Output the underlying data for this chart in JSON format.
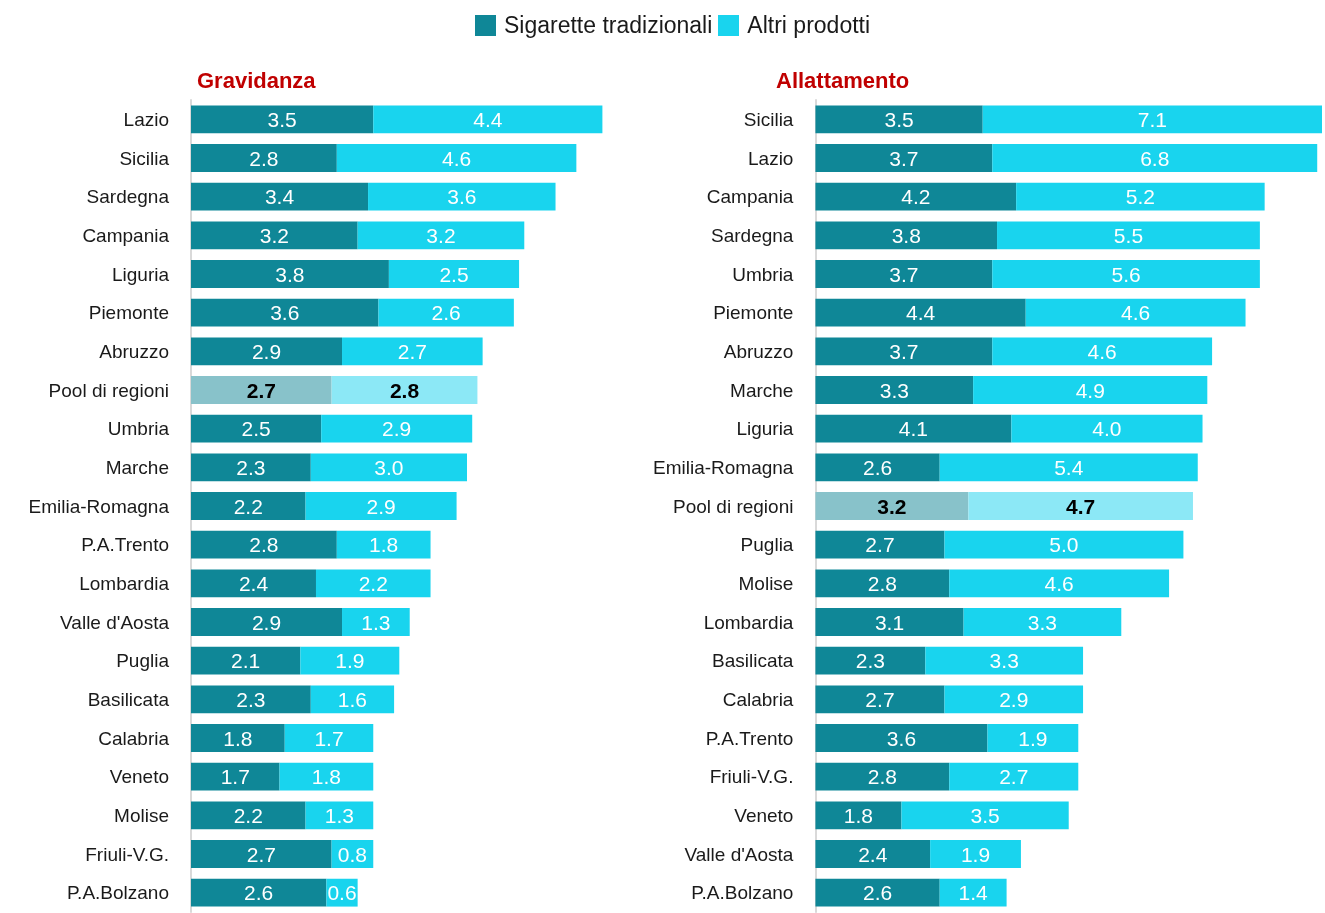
{
  "chart_data": [
    {
      "type": "bar",
      "orientation": "horizontal",
      "stacked": true,
      "title": "Gravidanza",
      "legend": "top",
      "tick_labels": "y",
      "categories": [
        "Lazio",
        "Sicilia",
        "Sardegna",
        "Campania",
        "Liguria",
        "Piemonte",
        "Abruzzo",
        "Pool di regioni",
        "Umbria",
        "Marche",
        "Emilia-Romagna",
        "P.A.Trento",
        "Lombardia",
        "Valle d'Aosta",
        "Puglia",
        "Basilicata",
        "Calabria",
        "Veneto",
        "Molise",
        "Friuli-V.G.",
        "P.A.Bolzano"
      ],
      "series": [
        {
          "name": "Sigarette tradizionali",
          "color": "#0f8797",
          "colors": [
            "#0f8797",
            "#0f8797",
            "#0f8797",
            "#0f8797",
            "#0f8797",
            "#0f8797",
            "#0f8797",
            "#88c2ca",
            "#0f8797",
            "#0f8797",
            "#0f8797",
            "#0f8797",
            "#0f8797",
            "#0f8797",
            "#0f8797",
            "#0f8797",
            "#0f8797",
            "#0f8797",
            "#0f8797",
            "#0f8797",
            "#0f8797"
          ],
          "values": [
            3.5,
            2.8,
            3.4,
            3.2,
            3.8,
            3.6,
            2.9,
            2.7,
            2.5,
            2.3,
            2.2,
            2.8,
            2.4,
            2.9,
            2.1,
            2.3,
            1.8,
            1.7,
            2.2,
            2.7,
            2.6
          ],
          "value_labels": [
            "3.5",
            "2.8",
            "3.4",
            "3.2",
            "3.8",
            "3.6",
            "2.9",
            "2.7",
            "2.5",
            "2.3",
            "2.2",
            "2.8",
            "2.4",
            "2.9",
            "2.1",
            "2.3",
            "1.8",
            "1.7",
            "2.2",
            "2.7",
            "2.6"
          ]
        },
        {
          "name": "Altri prodotti",
          "color": "#19d4ee",
          "colors": [
            "#19d4ee",
            "#19d4ee",
            "#19d4ee",
            "#19d4ee",
            "#19d4ee",
            "#19d4ee",
            "#19d4ee",
            "#8ce8f6",
            "#19d4ee",
            "#19d4ee",
            "#19d4ee",
            "#19d4ee",
            "#19d4ee",
            "#19d4ee",
            "#19d4ee",
            "#19d4ee",
            "#19d4ee",
            "#19d4ee",
            "#19d4ee",
            "#19d4ee",
            "#19d4ee"
          ],
          "values": [
            4.4,
            4.6,
            3.6,
            3.2,
            2.5,
            2.6,
            2.7,
            2.8,
            2.9,
            3.0,
            2.9,
            1.8,
            2.2,
            1.3,
            1.9,
            1.6,
            1.7,
            1.8,
            1.3,
            0.8,
            0.6
          ],
          "value_labels": [
            "4.4",
            "4.6",
            "3.6",
            "3.2",
            "2.5",
            "2.6",
            "2.7",
            "2.8",
            "2.9",
            "3.0",
            "2.9",
            "1.8",
            "2.2",
            "1.3",
            "1.9",
            "1.6",
            "1.7",
            "1.8",
            "1.3",
            "0.8",
            "0.6"
          ]
        }
      ]
    },
    {
      "type": "bar",
      "orientation": "horizontal",
      "stacked": true,
      "title": "Allattamento",
      "legend": "top",
      "tick_labels": "y",
      "categories": [
        "Sicilia",
        "Lazio",
        "Campania",
        "Sardegna",
        "Umbria",
        "Piemonte",
        "Abruzzo",
        "Marche",
        "Liguria",
        "Emilia-Romagna",
        "Pool di regioni",
        "Puglia",
        "Molise",
        "Lombardia",
        "Basilicata",
        "Calabria",
        "P.A.Trento",
        "Friuli-V.G.",
        "Veneto",
        "Valle d'Aosta",
        "P.A.Bolzano"
      ],
      "series": [
        {
          "name": "Sigarette tradizionali",
          "color": "#0f8797",
          "colors": [
            "#0f8797",
            "#0f8797",
            "#0f8797",
            "#0f8797",
            "#0f8797",
            "#0f8797",
            "#0f8797",
            "#0f8797",
            "#0f8797",
            "#0f8797",
            "#88c2ca",
            "#0f8797",
            "#0f8797",
            "#0f8797",
            "#0f8797",
            "#0f8797",
            "#0f8797",
            "#0f8797",
            "#0f8797",
            "#0f8797",
            "#0f8797"
          ],
          "values": [
            3.5,
            3.7,
            4.2,
            3.8,
            3.7,
            4.4,
            3.7,
            3.3,
            4.1,
            2.6,
            3.2,
            2.7,
            2.8,
            3.1,
            2.3,
            2.7,
            3.6,
            2.8,
            1.8,
            2.4,
            2.6
          ],
          "value_labels": [
            "3.5",
            "3.7",
            "4.2",
            "3.8",
            "3.7",
            "4.4",
            "3.7",
            "3.3",
            "4.1",
            "2.6",
            "3.2",
            "2.7",
            "2.8",
            "3.1",
            "2.3",
            "2.7",
            "3.6",
            "2.8",
            "1.8",
            "2.4",
            "2.6"
          ]
        },
        {
          "name": "Altri prodotti",
          "color": "#19d4ee",
          "colors": [
            "#19d4ee",
            "#19d4ee",
            "#19d4ee",
            "#19d4ee",
            "#19d4ee",
            "#19d4ee",
            "#19d4ee",
            "#19d4ee",
            "#19d4ee",
            "#19d4ee",
            "#8ce8f6",
            "#19d4ee",
            "#19d4ee",
            "#19d4ee",
            "#19d4ee",
            "#19d4ee",
            "#19d4ee",
            "#19d4ee",
            "#19d4ee",
            "#19d4ee",
            "#19d4ee"
          ],
          "values": [
            7.1,
            6.8,
            5.2,
            5.5,
            5.6,
            4.6,
            4.6,
            4.9,
            4.0,
            5.4,
            4.7,
            5.0,
            4.6,
            3.3,
            3.3,
            2.9,
            1.9,
            2.7,
            3.5,
            1.9,
            1.4
          ],
          "value_labels": [
            "7.1",
            "6.8",
            "5.2",
            "5.5",
            "5.6",
            "4.6",
            "4.6",
            "4.9",
            "4.0",
            "5.4",
            "4.7",
            "5.0",
            "4.6",
            "3.3",
            "3.3",
            "2.9",
            "1.9",
            "2.7",
            "3.5",
            "1.9",
            "1.4"
          ]
        }
      ]
    }
  ]
}
